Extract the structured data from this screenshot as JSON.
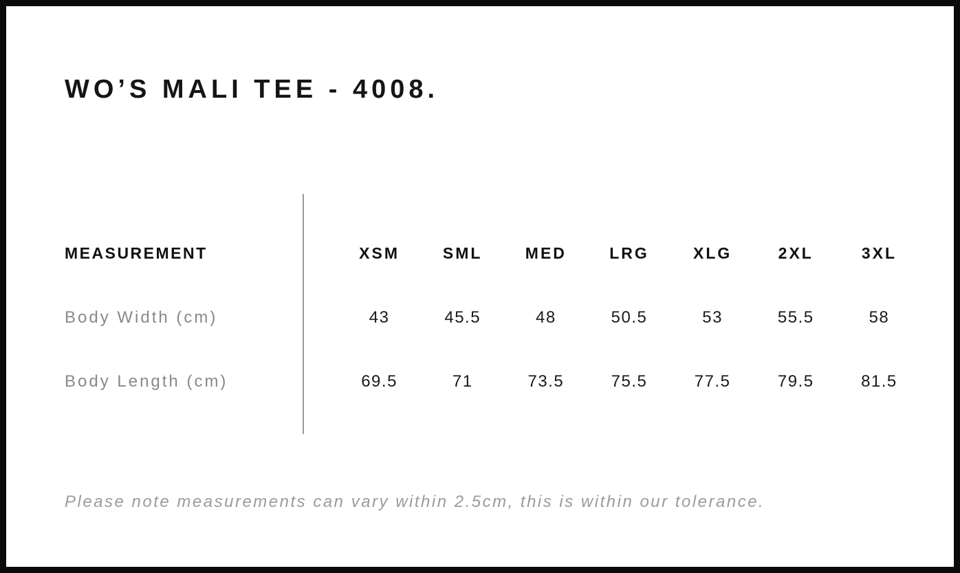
{
  "page": {
    "title": "WO’S MALI TEE - 4008.",
    "note": "Please note measurements can vary within 2.5cm, this is within our tolerance."
  },
  "size_table": {
    "header_label": "MEASUREMENT",
    "sizes": [
      "XSM",
      "SML",
      "MED",
      "LRG",
      "XLG",
      "2XL",
      "3XL"
    ],
    "rows": [
      {
        "label": "Body Width (cm)",
        "values": [
          "43",
          "45.5",
          "48",
          "50.5",
          "53",
          "55.5",
          "58"
        ]
      },
      {
        "label": "Body Length (cm)",
        "values": [
          "69.5",
          "71",
          "73.5",
          "75.5",
          "77.5",
          "79.5",
          "81.5"
        ]
      }
    ]
  },
  "colors": {
    "page_border": "#0a0a0a",
    "heading_text": "#111111",
    "value_text": "#1a1a1a",
    "muted_label_text": "#87898c",
    "note_text": "#9b9b9b",
    "divider_line": "#999999"
  }
}
